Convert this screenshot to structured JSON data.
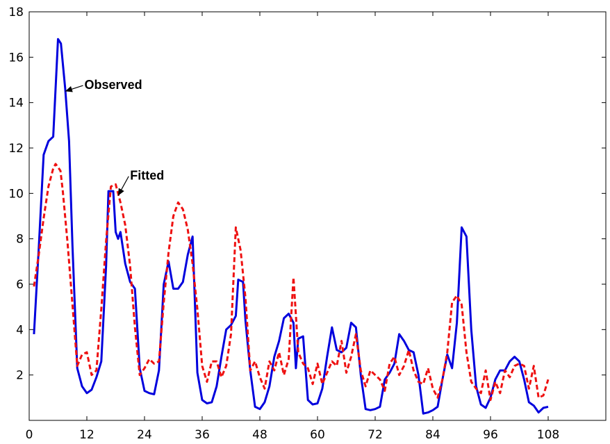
{
  "chart_data": {
    "type": "line",
    "title": "",
    "xlabel": "",
    "ylabel": "",
    "xlim": [
      0,
      120
    ],
    "ylim": [
      0,
      18
    ],
    "grid": false,
    "x_ticks": [
      0,
      12,
      24,
      36,
      48,
      60,
      72,
      84,
      96,
      108
    ],
    "y_ticks": [
      2,
      4,
      6,
      8,
      10,
      12,
      14,
      16,
      18
    ],
    "annotations": [
      {
        "text": "Observed",
        "series": "observed",
        "target": [
          7.5,
          14.5
        ],
        "label_at": [
          11.5,
          14.6
        ]
      },
      {
        "text": "Fitted",
        "series": "fitted",
        "target": [
          18.5,
          9.9
        ],
        "label_at": [
          21,
          10.6
        ]
      }
    ],
    "series": [
      {
        "id": "observed",
        "color": "#0000dd",
        "style": "solid",
        "points": [
          [
            1,
            3.8
          ],
          [
            2,
            7.6
          ],
          [
            3,
            11.7
          ],
          [
            4,
            12.3
          ],
          [
            5,
            12.5
          ],
          [
            6,
            16.8
          ],
          [
            6.6,
            16.6
          ],
          [
            7.5,
            14.6
          ],
          [
            8.3,
            12.3
          ],
          [
            9,
            7.7
          ],
          [
            10,
            2.3
          ],
          [
            11,
            1.5
          ],
          [
            12,
            1.2
          ],
          [
            13,
            1.35
          ],
          [
            14,
            1.9
          ],
          [
            15,
            2.6
          ],
          [
            16,
            6.8
          ],
          [
            16.5,
            10.1
          ],
          [
            17.5,
            10.1
          ],
          [
            18,
            8.3
          ],
          [
            18.5,
            8.0
          ],
          [
            19,
            8.3
          ],
          [
            20,
            6.9
          ],
          [
            21,
            6.1
          ],
          [
            22,
            5.8
          ],
          [
            23,
            2.3
          ],
          [
            24,
            1.3
          ],
          [
            25,
            1.2
          ],
          [
            26,
            1.15
          ],
          [
            27,
            2.2
          ],
          [
            28,
            6.0
          ],
          [
            29,
            7.0
          ],
          [
            30,
            5.8
          ],
          [
            31,
            5.8
          ],
          [
            32,
            6.1
          ],
          [
            33,
            7.3
          ],
          [
            34,
            8.1
          ],
          [
            35,
            2.1
          ],
          [
            36,
            0.9
          ],
          [
            37,
            0.75
          ],
          [
            38,
            0.8
          ],
          [
            39,
            1.5
          ],
          [
            40,
            2.8
          ],
          [
            41,
            4.0
          ],
          [
            42,
            4.2
          ],
          [
            43,
            4.6
          ],
          [
            43.5,
            6.2
          ],
          [
            44.5,
            6.1
          ],
          [
            45,
            4.4
          ],
          [
            46,
            2.2
          ],
          [
            47,
            0.6
          ],
          [
            48,
            0.5
          ],
          [
            49,
            0.8
          ],
          [
            50,
            1.5
          ],
          [
            51,
            2.8
          ],
          [
            52,
            3.5
          ],
          [
            53,
            4.5
          ],
          [
            54,
            4.7
          ],
          [
            55,
            4.3
          ],
          [
            55.5,
            2.3
          ],
          [
            56,
            3.6
          ],
          [
            57,
            3.7
          ],
          [
            58,
            0.9
          ],
          [
            59,
            0.7
          ],
          [
            60,
            0.75
          ],
          [
            61,
            1.4
          ],
          [
            62,
            2.8
          ],
          [
            63,
            4.1
          ],
          [
            64,
            3.1
          ],
          [
            65,
            3.0
          ],
          [
            66,
            3.2
          ],
          [
            67,
            4.3
          ],
          [
            68,
            4.1
          ],
          [
            69,
            2.0
          ],
          [
            70,
            0.5
          ],
          [
            71,
            0.45
          ],
          [
            72,
            0.5
          ],
          [
            73,
            0.6
          ],
          [
            74,
            1.8
          ],
          [
            75,
            2.1
          ],
          [
            76,
            2.5
          ],
          [
            77,
            3.8
          ],
          [
            78,
            3.5
          ],
          [
            79,
            3.1
          ],
          [
            80,
            3.0
          ],
          [
            81,
            2.0
          ],
          [
            82,
            0.3
          ],
          [
            83,
            0.35
          ],
          [
            84,
            0.45
          ],
          [
            85,
            0.6
          ],
          [
            86,
            1.8
          ],
          [
            87,
            2.9
          ],
          [
            88,
            2.3
          ],
          [
            89,
            4.3
          ],
          [
            90,
            8.5
          ],
          [
            91,
            8.1
          ],
          [
            92,
            4.0
          ],
          [
            93,
            1.5
          ],
          [
            94,
            0.7
          ],
          [
            95,
            0.55
          ],
          [
            96,
            1.0
          ],
          [
            97,
            1.8
          ],
          [
            98,
            2.2
          ],
          [
            99,
            2.2
          ],
          [
            100,
            2.6
          ],
          [
            101,
            2.8
          ],
          [
            102,
            2.6
          ],
          [
            103,
            1.8
          ],
          [
            104,
            0.8
          ],
          [
            105,
            0.65
          ],
          [
            106,
            0.35
          ],
          [
            107,
            0.55
          ],
          [
            108,
            0.6
          ]
        ]
      },
      {
        "id": "fitted",
        "color": "#ee1111",
        "style": "dashed",
        "points": [
          [
            1,
            5.9
          ],
          [
            2,
            7.3
          ],
          [
            3,
            8.9
          ],
          [
            4,
            10.3
          ],
          [
            5,
            11.1
          ],
          [
            5.5,
            11.3
          ],
          [
            6.5,
            11.0
          ],
          [
            7,
            10.1
          ],
          [
            8,
            7.8
          ],
          [
            9,
            5.1
          ],
          [
            10,
            2.4
          ],
          [
            11,
            2.9
          ],
          [
            12,
            3.0
          ],
          [
            13,
            2.0
          ],
          [
            14,
            2.2
          ],
          [
            15,
            4.9
          ],
          [
            16,
            7.9
          ],
          [
            17,
            10.3
          ],
          [
            18,
            10.4
          ],
          [
            19,
            9.6
          ],
          [
            20,
            8.6
          ],
          [
            21,
            6.8
          ],
          [
            22,
            4.1
          ],
          [
            23,
            2.0
          ],
          [
            24,
            2.3
          ],
          [
            25,
            2.7
          ],
          [
            26,
            2.5
          ],
          [
            27,
            2.6
          ],
          [
            28,
            5.2
          ],
          [
            29,
            7.4
          ],
          [
            30,
            9.0
          ],
          [
            31,
            9.6
          ],
          [
            32,
            9.3
          ],
          [
            33,
            8.4
          ],
          [
            34,
            6.9
          ],
          [
            35,
            4.9
          ],
          [
            36,
            2.4
          ],
          [
            37,
            1.7
          ],
          [
            38,
            2.6
          ],
          [
            39,
            2.6
          ],
          [
            40,
            1.9
          ],
          [
            41,
            2.4
          ],
          [
            42,
            3.8
          ],
          [
            43,
            8.5
          ],
          [
            44,
            7.5
          ],
          [
            45,
            5.4
          ],
          [
            46,
            2.2
          ],
          [
            47,
            2.6
          ],
          [
            48,
            1.9
          ],
          [
            49,
            1.4
          ],
          [
            50,
            2.6
          ],
          [
            51,
            2.2
          ],
          [
            52,
            3.0
          ],
          [
            53,
            2.0
          ],
          [
            54,
            2.7
          ],
          [
            55,
            6.3
          ],
          [
            56,
            3.0
          ],
          [
            57,
            2.5
          ],
          [
            58,
            2.3
          ],
          [
            59,
            1.6
          ],
          [
            60,
            2.5
          ],
          [
            61,
            1.6
          ],
          [
            62,
            2.1
          ],
          [
            63,
            2.6
          ],
          [
            64,
            2.4
          ],
          [
            65,
            3.5
          ],
          [
            66,
            2.1
          ],
          [
            67,
            2.8
          ],
          [
            68,
            3.8
          ],
          [
            69,
            2.2
          ],
          [
            70,
            1.5
          ],
          [
            71,
            2.2
          ],
          [
            72,
            2.0
          ],
          [
            73,
            1.8
          ],
          [
            74,
            1.3
          ],
          [
            75,
            2.5
          ],
          [
            76,
            2.8
          ],
          [
            77,
            2.0
          ],
          [
            78,
            2.4
          ],
          [
            79,
            3.1
          ],
          [
            80,
            2.2
          ],
          [
            81,
            1.7
          ],
          [
            82,
            1.6
          ],
          [
            83,
            2.3
          ],
          [
            84,
            1.4
          ],
          [
            85,
            1.0
          ],
          [
            86,
            1.8
          ],
          [
            87,
            3.0
          ],
          [
            88,
            5.2
          ],
          [
            89,
            5.5
          ],
          [
            90,
            5.1
          ],
          [
            91,
            3.0
          ],
          [
            92,
            1.7
          ],
          [
            93,
            1.4
          ],
          [
            94,
            1.2
          ],
          [
            95,
            2.2
          ],
          [
            96,
            0.9
          ],
          [
            97,
            1.7
          ],
          [
            98,
            1.2
          ],
          [
            99,
            2.2
          ],
          [
            100,
            1.9
          ],
          [
            101,
            2.4
          ],
          [
            102,
            2.5
          ],
          [
            103,
            2.4
          ],
          [
            104,
            1.4
          ],
          [
            105,
            2.4
          ],
          [
            106,
            1.0
          ],
          [
            107,
            1.1
          ],
          [
            108,
            1.8
          ]
        ]
      }
    ]
  }
}
